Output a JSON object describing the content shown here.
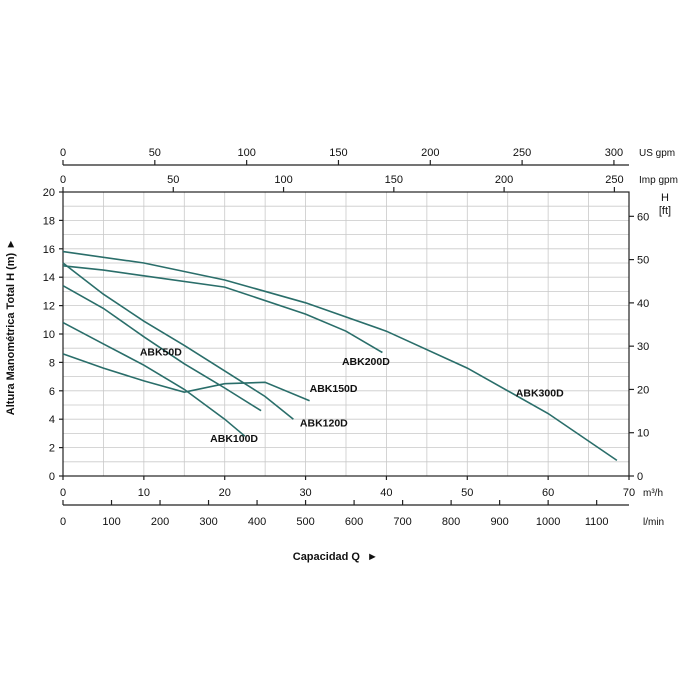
{
  "chart_data": {
    "type": "line",
    "title": "",
    "ylabel": "Altura Manométrica Total H (m)",
    "ylabel_right": "H [ft]",
    "xlabel": "Capacidad Q",
    "ylim": [
      0,
      20
    ],
    "y_ticks": [
      0,
      2,
      4,
      6,
      8,
      10,
      12,
      14,
      16,
      18,
      20
    ],
    "xlim_m3h": [
      0,
      70
    ],
    "axes": {
      "m3h": {
        "unit": "m³/h",
        "ticks": [
          0,
          10,
          20,
          30,
          40,
          50,
          60,
          70
        ]
      },
      "lmin": {
        "unit": "l/min",
        "ticks": [
          0,
          100,
          200,
          300,
          400,
          500,
          600,
          700,
          800,
          900,
          1000,
          1100
        ]
      },
      "us_gpm": {
        "unit": "US gpm",
        "ticks": [
          0,
          50,
          100,
          150,
          200,
          250,
          300
        ]
      },
      "imp_gpm": {
        "unit": "Imp gpm",
        "ticks": [
          0,
          50,
          100,
          150,
          200,
          250
        ]
      },
      "ft": {
        "unit": "H\n[ft]",
        "ticks": [
          0,
          10,
          20,
          30,
          40,
          50,
          60
        ]
      }
    },
    "grid": true,
    "series": [
      {
        "name": "ABK50D",
        "x": [
          0,
          5,
          10,
          15,
          20,
          24.5
        ],
        "y": [
          13.4,
          11.8,
          9.8,
          7.9,
          6.2,
          4.6
        ],
        "label_at": [
          9.5,
          8.5
        ]
      },
      {
        "name": "ABK100D",
        "x": [
          0,
          5,
          10,
          15,
          20,
          22.5
        ],
        "y": [
          10.8,
          9.3,
          7.8,
          6.1,
          4.0,
          2.8
        ],
        "label_at": [
          18.2,
          2.4
        ]
      },
      {
        "name": "ABK120D",
        "x": [
          0,
          5,
          10,
          15,
          20,
          25,
          28.5
        ],
        "y": [
          15.0,
          12.8,
          10.9,
          9.2,
          7.4,
          5.6,
          4.0
        ],
        "label_at": [
          29.3,
          3.5
        ]
      },
      {
        "name": "ABK150D",
        "x": [
          0,
          5,
          10,
          15,
          20,
          25,
          30.5
        ],
        "y": [
          8.6,
          7.6,
          6.7,
          5.9,
          6.5,
          6.6,
          5.3
        ],
        "label_at": [
          30.5,
          5.9
        ]
      },
      {
        "name": "ABK200D",
        "x": [
          0,
          5,
          10,
          20,
          30,
          35,
          39.5
        ],
        "y": [
          14.8,
          14.5,
          14.1,
          13.3,
          11.4,
          10.2,
          8.7
        ],
        "label_at": [
          34.5,
          7.8
        ]
      },
      {
        "name": "ABK300D",
        "x": [
          0,
          10,
          20,
          30,
          40,
          50,
          60,
          68.5
        ],
        "y": [
          15.8,
          15.0,
          13.8,
          12.2,
          10.2,
          7.6,
          4.4,
          1.1
        ],
        "label_at": [
          56,
          5.6
        ]
      }
    ]
  }
}
